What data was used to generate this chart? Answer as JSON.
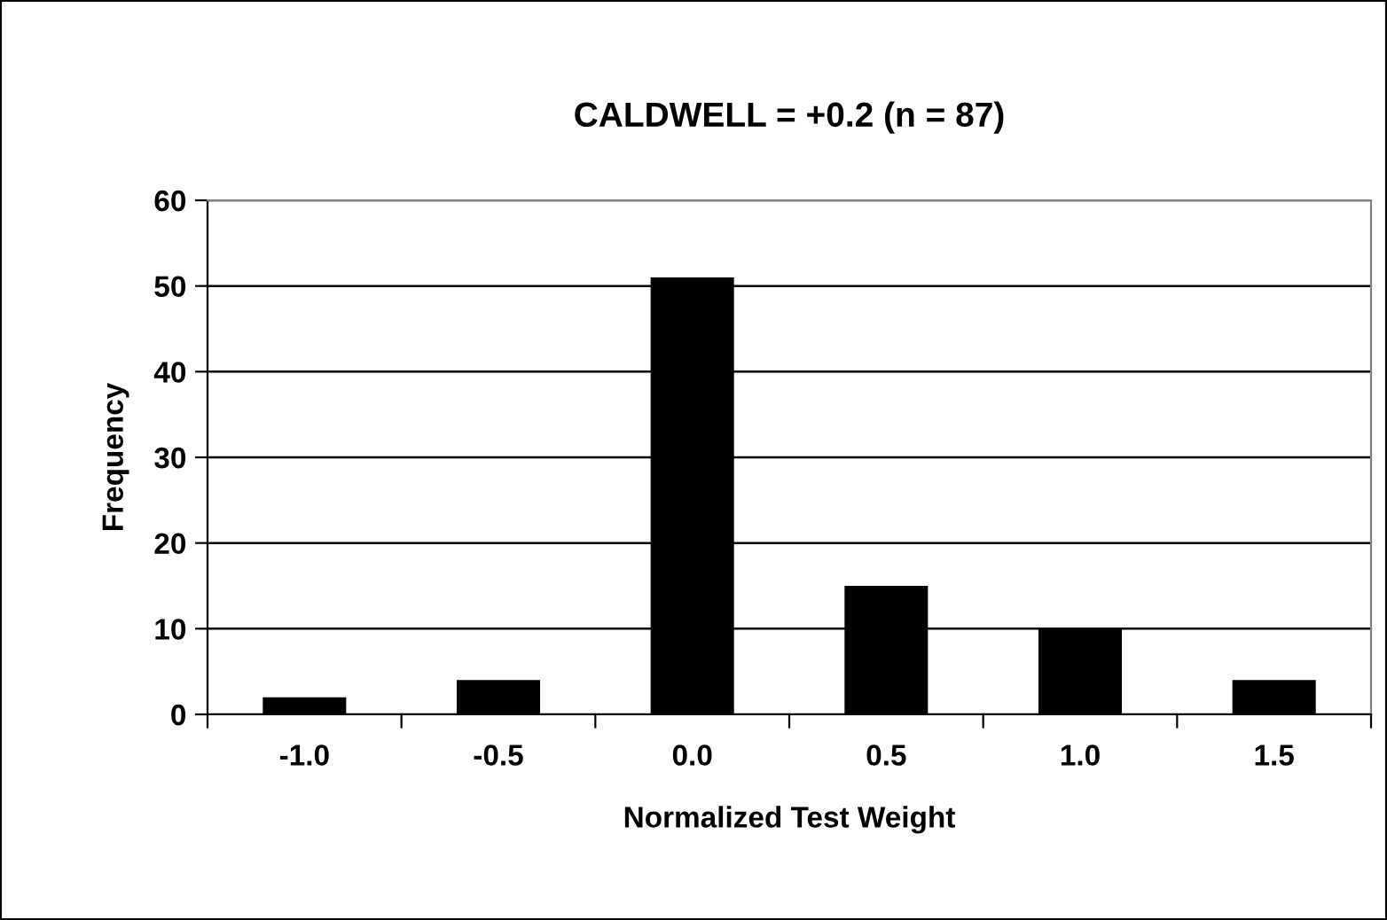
{
  "chart_data": {
    "type": "bar",
    "title": "CALDWELL = +0.2 (n = 87)",
    "xlabel": "Normalized Test Weight",
    "ylabel": "Frequency",
    "categories": [
      "-1.0",
      "-0.5",
      "0.0",
      "0.5",
      "1.0",
      "1.5"
    ],
    "values": [
      2,
      4,
      51,
      15,
      10,
      4
    ],
    "color": "#000000",
    "ylim": [
      0,
      60
    ],
    "yticks": [
      0,
      10,
      20,
      30,
      40,
      50,
      60
    ],
    "grid": "y",
    "legend": false
  }
}
